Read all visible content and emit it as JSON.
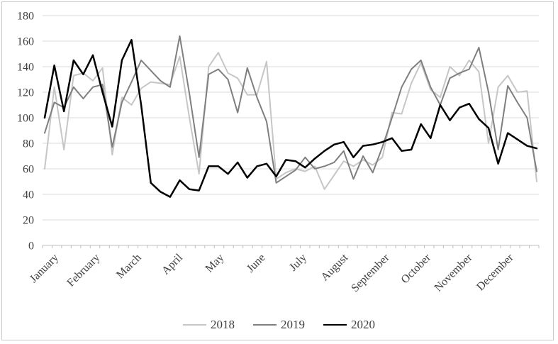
{
  "chart_data": {
    "type": "line",
    "title": "",
    "xlabel": "",
    "ylabel": "",
    "x_month_labels": [
      "January",
      "February",
      "March",
      "April",
      "May",
      "June",
      "July",
      "August",
      "September",
      "October",
      "November",
      "December"
    ],
    "points_per_series": 52,
    "x_unit": "week",
    "y_axis": {
      "min": 0,
      "max": 180,
      "step": 20,
      "tick_labels": [
        "0",
        "20",
        "40",
        "60",
        "80",
        "100",
        "120",
        "140",
        "160",
        "180"
      ]
    },
    "grid": true,
    "legend_position": "bottom",
    "series": [
      {
        "name": "2018",
        "color": "#c6c6c6",
        "width": 2,
        "values": [
          60,
          124,
          75,
          133,
          135,
          129,
          139,
          71,
          116,
          110,
          123,
          128,
          127,
          126,
          148,
          100,
          56,
          140,
          151,
          135,
          131,
          118,
          118,
          144,
          52,
          57,
          60,
          58,
          62,
          44,
          55,
          66,
          62,
          67,
          63,
          69,
          104,
          103,
          127,
          143,
          122,
          116,
          140,
          133,
          145,
          136,
          80,
          124,
          133,
          120,
          121,
          50
        ]
      },
      {
        "name": "2019",
        "color": "#7f7f7f",
        "width": 2,
        "values": [
          88,
          112,
          108,
          124,
          115,
          124,
          126,
          77,
          112,
          128,
          145,
          137,
          129,
          124,
          164,
          119,
          69,
          134,
          138,
          130,
          104,
          139,
          116,
          97,
          49,
          54,
          59,
          69,
          60,
          62,
          65,
          74,
          52,
          70,
          57,
          77,
          100,
          124,
          138,
          145,
          124,
          110,
          131,
          135,
          138,
          155,
          120,
          75,
          125,
          112,
          100,
          58
        ]
      },
      {
        "name": "2020",
        "color": "#000000",
        "width": 2.5,
        "values": [
          100,
          141,
          105,
          145,
          134,
          149,
          120,
          93,
          145,
          161,
          110,
          49,
          42,
          38,
          51,
          44,
          43,
          62,
          62,
          56,
          65,
          53,
          62,
          64,
          54,
          67,
          66,
          61,
          68,
          74,
          79,
          81,
          69,
          78,
          79,
          81,
          84,
          74,
          75,
          95,
          84,
          110,
          98,
          108,
          111,
          99,
          92,
          64,
          88,
          83,
          78,
          76
        ]
      }
    ],
    "legend": [
      {
        "label": "2018",
        "color": "#c6c6c6",
        "thickness": 2
      },
      {
        "label": "2019",
        "color": "#7f7f7f",
        "thickness": 2
      },
      {
        "label": "2020",
        "color": "#000000",
        "thickness": 2.5
      }
    ]
  },
  "styles": {
    "gridline_color": "#d9d9d9",
    "axis_color": "#bfbfbf",
    "tick_color": "#bfbfbf",
    "text_color": "#404040",
    "border_color": "#c9c9c9",
    "background": "#ffffff"
  }
}
